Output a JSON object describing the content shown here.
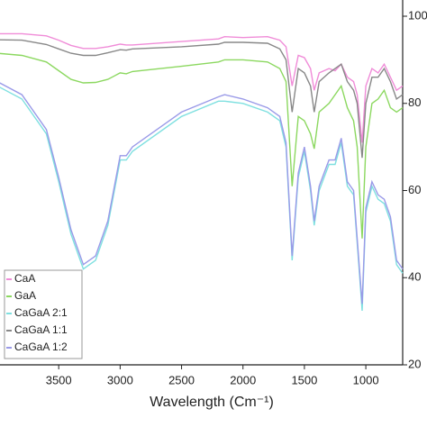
{
  "chart_data": {
    "type": "line",
    "x_label": "Wavelength (Cm⁻¹)",
    "x": [
      4000,
      3800,
      3600,
      3500,
      3400,
      3300,
      3200,
      3100,
      3000,
      2950,
      2900,
      2500,
      2200,
      2150,
      2000,
      1800,
      1700,
      1650,
      1600,
      1550,
      1500,
      1450,
      1420,
      1380,
      1300,
      1250,
      1200,
      1150,
      1100,
      1070,
      1030,
      1000,
      950,
      900,
      850,
      800,
      750,
      700
    ],
    "series": [
      {
        "name": "CaA",
        "color": "#f08cd8",
        "values": [
          96,
          96,
          95.5,
          94.5,
          93.3,
          92.6,
          92.6,
          93,
          93.6,
          93.4,
          93.4,
          94.2,
          94.8,
          95.3,
          95.1,
          95.3,
          94.5,
          93,
          84,
          91,
          90.5,
          88,
          83,
          87,
          88,
          87.5,
          89,
          86,
          85,
          82,
          71,
          84,
          88,
          87,
          89,
          86,
          83,
          84
        ]
      },
      {
        "name": "GaA",
        "color": "#8cd860",
        "values": [
          91.5,
          91,
          89.5,
          87.5,
          85.5,
          84.7,
          84.8,
          85.5,
          87,
          86.8,
          87.3,
          88.5,
          89.5,
          90,
          90,
          89.5,
          88,
          85,
          61,
          77,
          76,
          73,
          69.6,
          78,
          80,
          82,
          84,
          79,
          76,
          70,
          49,
          70,
          80,
          81,
          83,
          79,
          78,
          79
        ]
      },
      {
        "name": "CaGaA 2:1",
        "color": "#7fe0e0",
        "values": [
          84,
          81,
          73,
          62,
          50,
          42,
          44,
          52,
          67,
          67,
          69,
          77,
          80.5,
          80.5,
          80,
          78,
          76,
          70,
          44,
          63,
          69,
          60,
          52,
          60,
          66,
          66,
          71,
          61,
          59,
          48,
          32.4,
          55,
          61,
          58,
          57,
          53,
          43,
          41
        ]
      },
      {
        "name": "CaGaA 1:1",
        "color": "#888888",
        "values": [
          94.6,
          94.5,
          93.5,
          92.5,
          91.5,
          91,
          91,
          91.6,
          92.3,
          92.2,
          92.5,
          93,
          93.6,
          94,
          94,
          93.8,
          92.5,
          90,
          78,
          88,
          87,
          84,
          78,
          85,
          87,
          88,
          89,
          85,
          83,
          80,
          67.5,
          80,
          86,
          86,
          88,
          85,
          81,
          82
        ]
      },
      {
        "name": "CaGaA 1:2",
        "color": "#9a9ae8",
        "values": [
          85,
          82,
          74,
          63,
          51,
          43,
          45,
          53,
          68,
          68,
          70,
          78,
          81.5,
          82,
          81,
          79,
          77,
          71,
          45,
          64,
          70,
          61,
          53,
          61,
          67,
          67,
          72,
          62,
          60,
          49,
          34,
          56,
          62,
          59,
          58,
          54,
          44,
          42
        ]
      }
    ],
    "xlim": [
      4000,
      700
    ],
    "xticks": [
      3500,
      3000,
      2500,
      2000,
      1500,
      1000
    ],
    "ylim": [
      20,
      100
    ],
    "yticks": [
      20,
      40,
      60,
      80,
      100
    ]
  }
}
